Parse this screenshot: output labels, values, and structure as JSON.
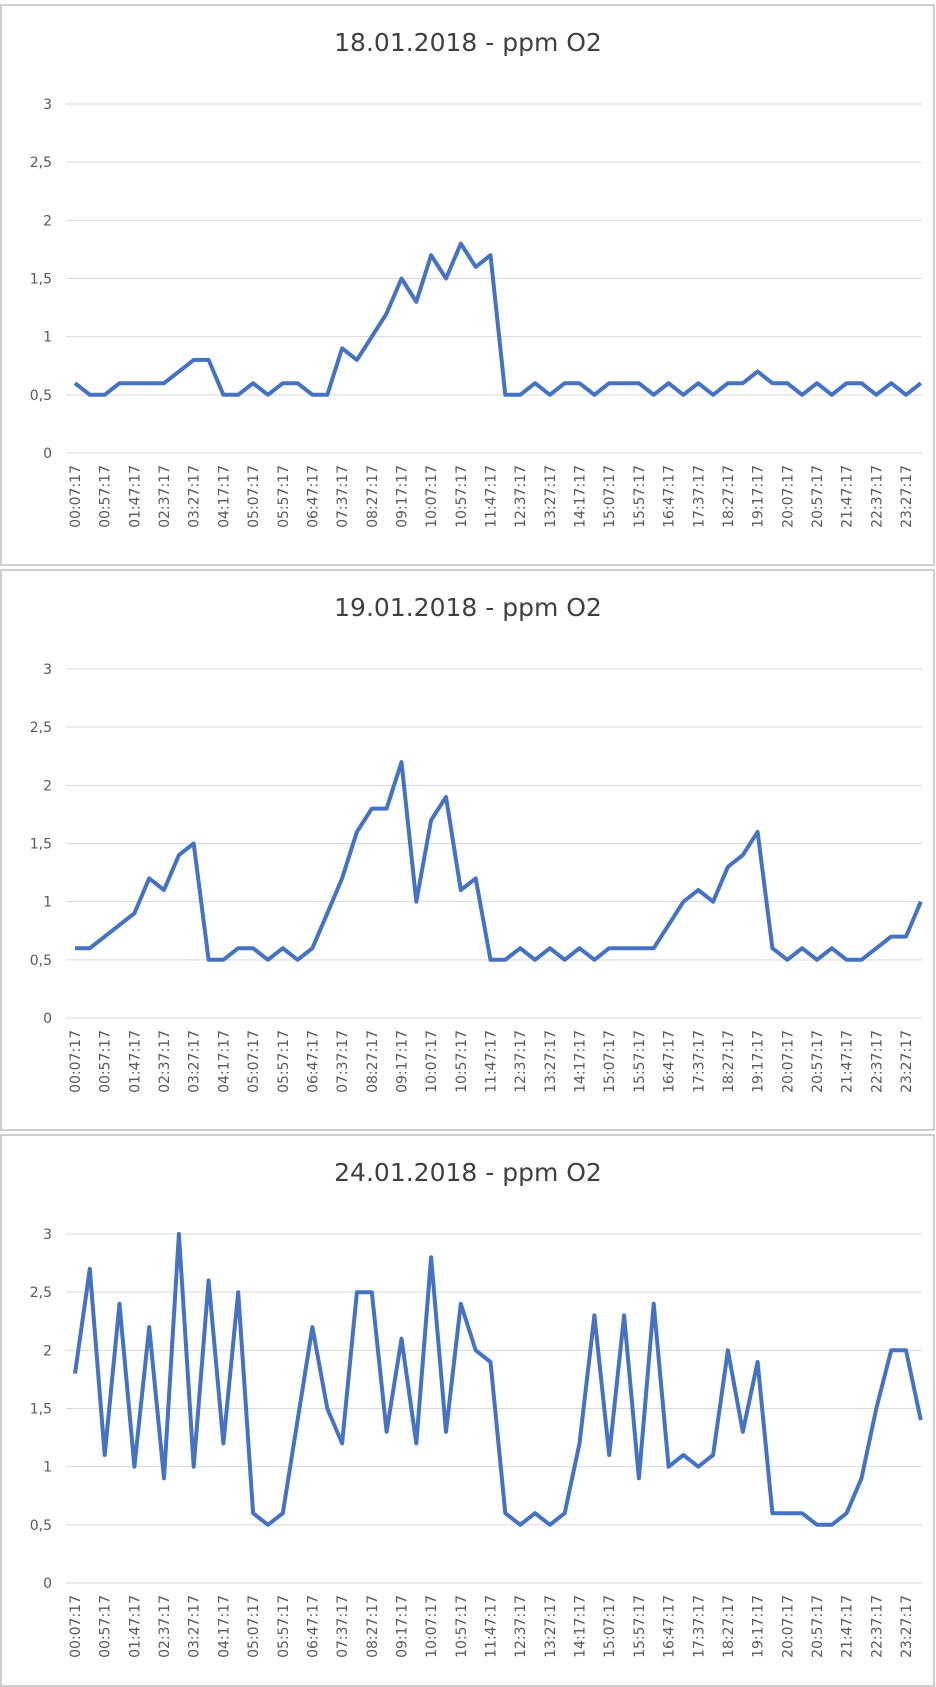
{
  "chart_data": [
    {
      "type": "line",
      "title": "18.01.2018 - ppm O2",
      "categories": [
        "00:07:17",
        null,
        "00:57:17",
        null,
        "01:47:17",
        null,
        "02:37:17",
        null,
        "03:27:17",
        null,
        "04:17:17",
        null,
        "05:07:17",
        null,
        "05:57:17",
        null,
        "06:47:17",
        null,
        "07:37:17",
        null,
        "08:27:17",
        null,
        "09:17:17",
        null,
        "10:07:17",
        null,
        "10:57:17",
        null,
        "11:47:17",
        null,
        "12:37:17",
        null,
        "13:27:17",
        null,
        "14:17:17",
        null,
        "15:07:17",
        null,
        "15:57:17",
        null,
        "16:47:17",
        null,
        "17:37:17",
        null,
        "18:27:17",
        null,
        "19:17:17",
        null,
        "20:07:17",
        null,
        "20:57:17",
        null,
        "21:47:17",
        null,
        "22:37:17",
        null,
        "23:27:17",
        null
      ],
      "series": [
        {
          "color": "#4472c4",
          "values": [
            0.6,
            0.5,
            0.5,
            0.6,
            0.6,
            0.6,
            0.6,
            0.7,
            0.8,
            0.8,
            0.5,
            0.5,
            0.6,
            0.5,
            0.6,
            0.6,
            0.5,
            0.5,
            0.9,
            0.8,
            1.0,
            1.2,
            1.5,
            1.3,
            1.7,
            1.5,
            1.8,
            1.6,
            1.7,
            0.5,
            0.5,
            0.6,
            0.5,
            0.6,
            0.6,
            0.5,
            0.6,
            0.6,
            0.6,
            0.5,
            0.6,
            0.5,
            0.6,
            0.5,
            0.6,
            0.6,
            0.7,
            0.6,
            0.6,
            0.5,
            0.6,
            0.5,
            0.6,
            0.6,
            0.5,
            0.6,
            0.5,
            0.6
          ]
        }
      ],
      "ylim": [
        0,
        3
      ],
      "yticks": [
        0,
        {
          "value": 0.5,
          "label": "0,5"
        },
        1,
        {
          "value": 1.5,
          "label": "1,5"
        },
        2,
        {
          "value": 2.5,
          "label": "2,5"
        },
        3
      ],
      "grid": true
    },
    {
      "type": "line",
      "title": "19.01.2018 - ppm O2",
      "categories": [
        "00:07:17",
        null,
        "00:57:17",
        null,
        "01:47:17",
        null,
        "02:37:17",
        null,
        "03:27:17",
        null,
        "04:17:17",
        null,
        "05:07:17",
        null,
        "05:57:17",
        null,
        "06:47:17",
        null,
        "07:37:17",
        null,
        "08:27:17",
        null,
        "09:17:17",
        null,
        "10:07:17",
        null,
        "10:57:17",
        null,
        "11:47:17",
        null,
        "12:37:17",
        null,
        "13:27:17",
        null,
        "14:17:17",
        null,
        "15:07:17",
        null,
        "15:57:17",
        null,
        "16:47:17",
        null,
        "17:37:17",
        null,
        "18:27:17",
        null,
        "19:17:17",
        null,
        "20:07:17",
        null,
        "20:57:17",
        null,
        "21:47:17",
        null,
        "22:37:17",
        null,
        "23:27:17",
        null
      ],
      "series": [
        {
          "color": "#4472c4",
          "values": [
            0.6,
            0.6,
            0.7,
            0.8,
            0.9,
            1.2,
            1.1,
            1.4,
            1.5,
            0.5,
            0.5,
            0.6,
            0.6,
            0.5,
            0.6,
            0.5,
            0.6,
            0.9,
            1.2,
            1.6,
            1.8,
            1.8,
            2.2,
            1.0,
            1.7,
            1.9,
            1.1,
            1.2,
            0.5,
            0.5,
            0.6,
            0.5,
            0.6,
            0.5,
            0.6,
            0.5,
            0.6,
            0.6,
            0.6,
            0.6,
            0.8,
            1.0,
            1.1,
            1.0,
            1.3,
            1.4,
            1.6,
            0.6,
            0.5,
            0.6,
            0.5,
            0.6,
            0.5,
            0.5,
            0.6,
            0.7,
            0.7,
            1.0
          ]
        }
      ],
      "ylim": [
        0,
        3
      ],
      "yticks": [
        0,
        {
          "value": 0.5,
          "label": "0,5"
        },
        1,
        {
          "value": 1.5,
          "label": "1,5"
        },
        2,
        {
          "value": 2.5,
          "label": "2,5"
        },
        3
      ],
      "grid": true
    },
    {
      "type": "line",
      "title": "24.01.2018 - ppm O2",
      "categories": [
        "00:07:17",
        null,
        "00:57:17",
        null,
        "01:47:17",
        null,
        "02:37:17",
        null,
        "03:27:17",
        null,
        "04:17:17",
        null,
        "05:07:17",
        null,
        "05:57:17",
        null,
        "06:47:17",
        null,
        "07:37:17",
        null,
        "08:27:17",
        null,
        "09:17:17",
        null,
        "10:07:17",
        null,
        "10:57:17",
        null,
        "11:47:17",
        null,
        "12:37:17",
        null,
        "13:27:17",
        null,
        "14:17:17",
        null,
        "15:07:17",
        null,
        "15:57:17",
        null,
        "16:47:17",
        null,
        "17:37:17",
        null,
        "18:27:17",
        null,
        "19:17:17",
        null,
        "20:07:17",
        null,
        "20:57:17",
        null,
        "21:47:17",
        null,
        "22:37:17",
        null,
        "23:27:17",
        null
      ],
      "series": [
        {
          "color": "#4472c4",
          "values": [
            1.8,
            2.7,
            1.1,
            2.4,
            1.0,
            2.2,
            0.9,
            3.0,
            1.0,
            2.6,
            1.2,
            2.5,
            0.6,
            0.5,
            0.6,
            1.4,
            2.2,
            1.5,
            1.2,
            2.5,
            2.5,
            1.3,
            2.1,
            1.2,
            2.8,
            1.3,
            2.4,
            2.0,
            1.9,
            0.6,
            0.5,
            0.6,
            0.5,
            0.6,
            1.2,
            2.3,
            1.1,
            2.3,
            0.9,
            2.4,
            1.0,
            1.1,
            1.0,
            1.1,
            2.0,
            1.3,
            1.9,
            0.6,
            0.6,
            0.6,
            0.5,
            0.5,
            0.6,
            0.9,
            1.5,
            2.0,
            2.0,
            1.4
          ]
        }
      ],
      "ylim": [
        0,
        3
      ],
      "yticks": [
        0,
        {
          "value": 0.5,
          "label": "0,5"
        },
        1,
        {
          "value": 1.5,
          "label": "1,5"
        },
        2,
        {
          "value": 2.5,
          "label": "2,5"
        },
        3
      ],
      "grid": true
    }
  ]
}
